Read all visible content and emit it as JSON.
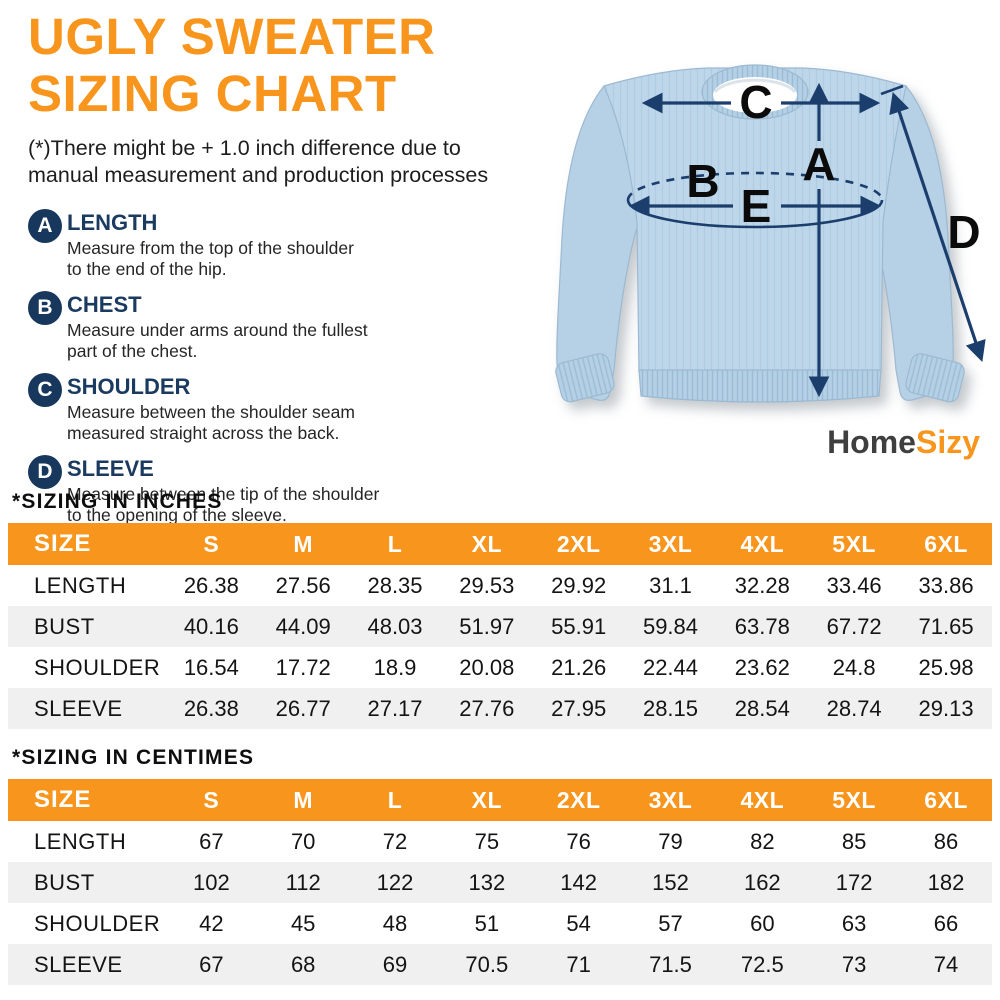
{
  "colors": {
    "accent_orange": "#F8951D",
    "navy": "#17375C",
    "arrow_navy": "#1C3E6D",
    "row_stripe": "#F0F0F0",
    "sweater_blue": "#BDD6E9",
    "logo_gray": "#3F3F3F"
  },
  "header": {
    "title_line1": "UGLY SWEATER",
    "title_line2": "SIZING CHART",
    "disclaimer_line1": "(*)There might be + 1.0 inch difference due to",
    "disclaimer_line2": "manual measurement and production processes"
  },
  "legend": {
    "items": [
      {
        "letter": "A",
        "label": "LENGTH",
        "desc_line1": "Measure from the top of the shoulder",
        "desc_line2": "to the end of the hip."
      },
      {
        "letter": "B",
        "label": "CHEST",
        "desc_line1": "Measure under arms around the fullest",
        "desc_line2": "part of the chest."
      },
      {
        "letter": "C",
        "label": "SHOULDER",
        "desc_line1": "Measure between the shoulder seam",
        "desc_line2": "measured straight across the back."
      },
      {
        "letter": "D",
        "label": "SLEEVE",
        "desc_line1": "Measure between the tip of the shoulder",
        "desc_line2": "to the opening of the sleeve."
      }
    ]
  },
  "figure": {
    "labels": {
      "a": "A",
      "b": "B",
      "c": "C",
      "d": "D",
      "e": "E"
    }
  },
  "logo": {
    "part1": "Home",
    "part2": "Sizy"
  },
  "chart_data": [
    {
      "type": "table",
      "title": "*SIZING IN INCHES",
      "columns": [
        "SIZE",
        "S",
        "M",
        "L",
        "XL",
        "2XL",
        "3XL",
        "4XL",
        "5XL",
        "6XL"
      ],
      "rows": [
        {
          "label": "LENGTH",
          "values": [
            26.38,
            27.56,
            28.35,
            29.53,
            29.92,
            31.1,
            32.28,
            33.46,
            33.86
          ]
        },
        {
          "label": "BUST",
          "values": [
            40.16,
            44.09,
            48.03,
            51.97,
            55.91,
            59.84,
            63.78,
            67.72,
            71.65
          ]
        },
        {
          "label": "SHOULDER",
          "values": [
            16.54,
            17.72,
            18.9,
            20.08,
            21.26,
            22.44,
            23.62,
            24.8,
            25.98
          ]
        },
        {
          "label": "SLEEVE",
          "values": [
            26.38,
            26.77,
            27.17,
            27.76,
            27.95,
            28.15,
            28.54,
            28.74,
            29.13
          ]
        }
      ]
    },
    {
      "type": "table",
      "title": "*SIZING IN CENTIMES",
      "columns": [
        "SIZE",
        "S",
        "M",
        "L",
        "XL",
        "2XL",
        "3XL",
        "4XL",
        "5XL",
        "6XL"
      ],
      "rows": [
        {
          "label": "LENGTH",
          "values": [
            67,
            70,
            72,
            75,
            76,
            79,
            82,
            85,
            86
          ]
        },
        {
          "label": "BUST",
          "values": [
            102,
            112,
            122,
            132,
            142,
            152,
            162,
            172,
            182
          ]
        },
        {
          "label": "SHOULDER",
          "values": [
            42,
            45,
            48,
            51,
            54,
            57,
            60,
            63,
            66
          ]
        },
        {
          "label": "SLEEVE",
          "values": [
            67,
            68,
            69,
            70.5,
            71,
            71.5,
            72.5,
            73,
            74
          ]
        }
      ]
    }
  ]
}
